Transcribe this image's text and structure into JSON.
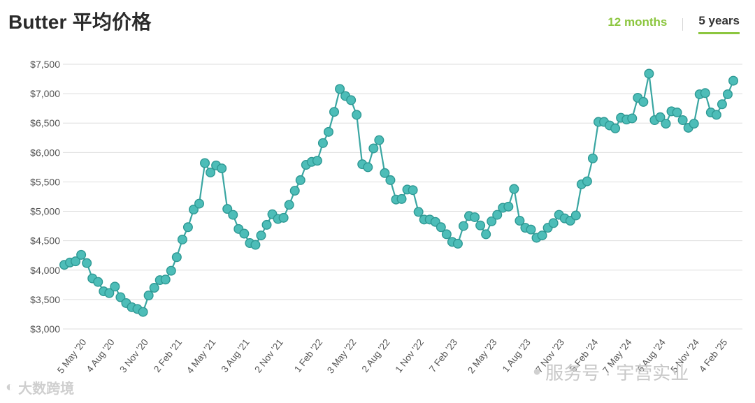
{
  "header": {
    "title": "Butter 平均价格",
    "tabs": [
      {
        "label": "12 months",
        "active": false
      },
      {
        "label": "5 years",
        "active": true
      }
    ]
  },
  "watermarks": {
    "left": "大数跨境",
    "right": "服务号 · 宇营实业"
  },
  "colors": {
    "line": "#3aa6a2",
    "marker_fill": "#4dbdb8",
    "marker_stroke": "#2e9994",
    "accent": "#8cc63f"
  },
  "chart_data": {
    "type": "line",
    "xlabel": "",
    "ylabel": "",
    "ylim": [
      3000,
      7500
    ],
    "y_ticks": [
      3000,
      3500,
      4000,
      4500,
      5000,
      5500,
      6000,
      6500,
      7000,
      7500
    ],
    "y_tick_labels": [
      "$3,000",
      "$3,500",
      "$4,000",
      "$4,500",
      "$5,000",
      "$5,500",
      "$6,000",
      "$6,500",
      "$7,000",
      "$7,500"
    ],
    "grid": true,
    "legend": "none",
    "x_tick_labels": [
      {
        "label": "5 May '20",
        "index": 4
      },
      {
        "label": "4 Aug '20",
        "index": 9
      },
      {
        "label": "3 Nov '20",
        "index": 15
      },
      {
        "label": "2 Feb '21",
        "index": 21
      },
      {
        "label": "4 May '21",
        "index": 27
      },
      {
        "label": "3 Aug '21",
        "index": 33
      },
      {
        "label": "2 Nov '21",
        "index": 39
      },
      {
        "label": "1 Feb '22",
        "index": 46
      },
      {
        "label": "3 May '22",
        "index": 52
      },
      {
        "label": "2 Aug '22",
        "index": 58
      },
      {
        "label": "1 Nov '22",
        "index": 64
      },
      {
        "label": "7 Feb '23",
        "index": 70
      },
      {
        "label": "2 May '23",
        "index": 77
      },
      {
        "label": "1 Aug '23",
        "index": 83
      },
      {
        "label": "7 Nov '23",
        "index": 89
      },
      {
        "label": "6 Feb '24",
        "index": 95
      },
      {
        "label": "7 May '24",
        "index": 101
      },
      {
        "label": "6 Aug '24",
        "index": 107
      },
      {
        "label": "5 Nov '24",
        "index": 113
      },
      {
        "label": "4 Feb '25",
        "index": 118
      }
    ],
    "series": [
      {
        "values": [
          4090,
          4130,
          4150,
          4260,
          4120,
          3860,
          3800,
          3640,
          3610,
          3720,
          3540,
          3440,
          3370,
          3340,
          3290,
          3570,
          3700,
          3830,
          3840,
          3990,
          4220,
          4520,
          4730,
          5030,
          5130,
          5820,
          5660,
          5780,
          5730,
          5040,
          4940,
          4700,
          4620,
          4460,
          4430,
          4590,
          4770,
          4950,
          4870,
          4890,
          5110,
          5350,
          5530,
          5790,
          5840,
          5860,
          6160,
          6350,
          6690,
          7080,
          6960,
          6890,
          6640,
          5800,
          5750,
          6070,
          6210,
          5650,
          5530,
          5200,
          5210,
          5370,
          5360,
          4990,
          4860,
          4860,
          4820,
          4730,
          4610,
          4480,
          4450,
          4750,
          4920,
          4900,
          4760,
          4610,
          4830,
          4940,
          5060,
          5080,
          5380,
          4840,
          4720,
          4690,
          4550,
          4590,
          4720,
          4800,
          4940,
          4880,
          4840,
          4930,
          5460,
          5510,
          5900,
          6520,
          6520,
          6460,
          6410,
          6590,
          6560,
          6580,
          6930,
          6860,
          7340,
          6550,
          6600,
          6490,
          6700,
          6680,
          6550,
          6420,
          6490,
          6990,
          7010,
          6680,
          6640,
          6820,
          6990,
          7220
        ]
      }
    ]
  }
}
